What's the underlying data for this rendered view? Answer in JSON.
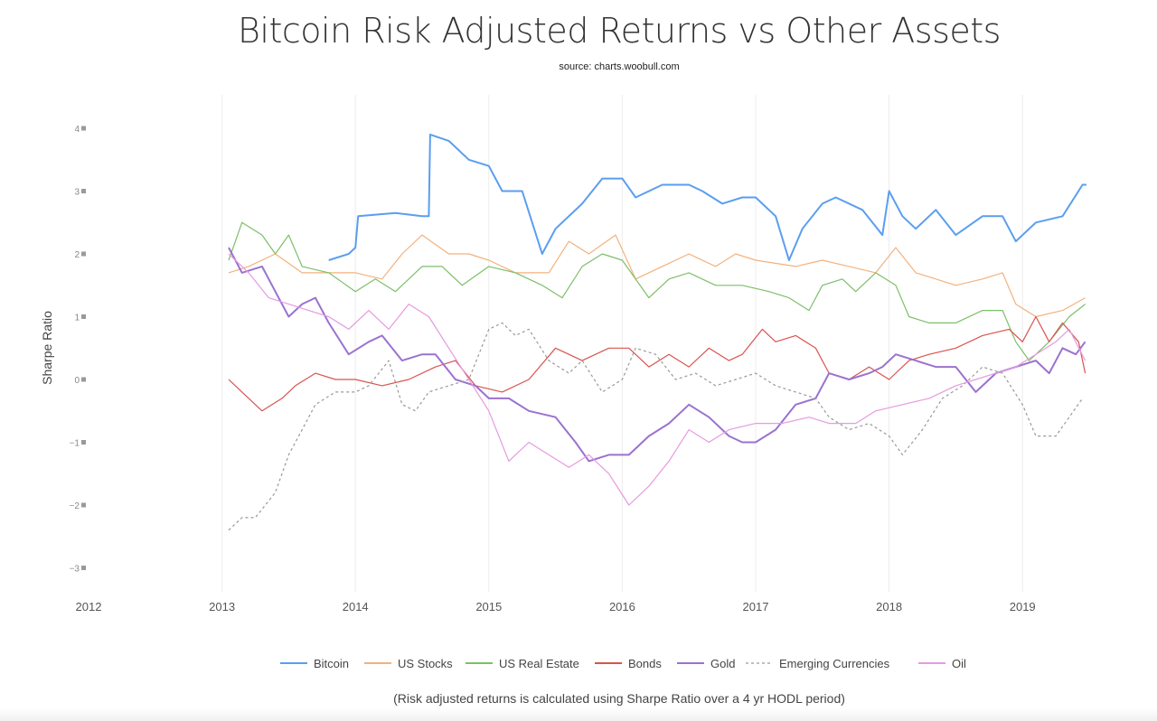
{
  "chart_data": {
    "type": "line",
    "title": "Bitcoin Risk Adjusted Returns vs Other Assets",
    "subtitle": "source: charts.woobull.com",
    "xlabel": "",
    "ylabel": "Sharpe Ratio",
    "footnote": "(Risk adjusted returns is calculated using Sharpe Ratio over a 4 yr HODL period)",
    "xlim": [
      2012,
      2019.5
    ],
    "ylim": [
      -3.4,
      4.4
    ],
    "x_ticks": [
      "2012",
      "2013",
      "2014",
      "2015",
      "2016",
      "2017",
      "2018",
      "2019"
    ],
    "y_ticks": [
      "4",
      "3",
      "2",
      "1",
      "0",
      "−1",
      "−2",
      "−3"
    ],
    "grid": "vertical",
    "legend_position": "bottom",
    "series": [
      {
        "name": "Bitcoin",
        "color": "#5a9ef0",
        "dash": false,
        "x": [
          2013.8,
          2013.95,
          2014.0,
          2014.02,
          2014.3,
          2014.5,
          2014.55,
          2014.56,
          2014.7,
          2014.85,
          2015.0,
          2015.1,
          2015.25,
          2015.4,
          2015.5,
          2015.7,
          2015.85,
          2016.0,
          2016.1,
          2016.3,
          2016.5,
          2016.6,
          2016.75,
          2016.9,
          2017.0,
          2017.15,
          2017.25,
          2017.35,
          2017.5,
          2017.6,
          2017.8,
          2017.95,
          2018.0,
          2018.1,
          2018.2,
          2018.35,
          2018.5,
          2018.7,
          2018.85,
          2018.95,
          2019.1,
          2019.3,
          2019.45,
          2019.48
        ],
        "y": [
          1.9,
          2.0,
          2.1,
          2.6,
          2.65,
          2.6,
          2.6,
          3.9,
          3.8,
          3.5,
          3.4,
          3.0,
          3.0,
          2.0,
          2.4,
          2.8,
          3.2,
          3.2,
          2.9,
          3.1,
          3.1,
          3.0,
          2.8,
          2.9,
          2.9,
          2.6,
          1.9,
          2.4,
          2.8,
          2.9,
          2.7,
          2.3,
          3.0,
          2.6,
          2.4,
          2.7,
          2.3,
          2.6,
          2.6,
          2.2,
          2.5,
          2.6,
          3.1,
          3.1
        ]
      },
      {
        "name": "US Stocks",
        "color": "#f2b27e",
        "dash": false,
        "x": [
          2013.05,
          2013.2,
          2013.4,
          2013.6,
          2013.8,
          2014.0,
          2014.2,
          2014.35,
          2014.5,
          2014.7,
          2014.85,
          2015.0,
          2015.2,
          2015.45,
          2015.6,
          2015.75,
          2015.95,
          2016.1,
          2016.3,
          2016.5,
          2016.7,
          2016.85,
          2017.0,
          2017.3,
          2017.5,
          2017.7,
          2017.9,
          2018.05,
          2018.2,
          2018.35,
          2018.5,
          2018.7,
          2018.85,
          2018.95,
          2019.1,
          2019.3,
          2019.47
        ],
        "y": [
          1.7,
          1.8,
          2.0,
          1.7,
          1.7,
          1.7,
          1.6,
          2.0,
          2.3,
          2.0,
          2.0,
          1.9,
          1.7,
          1.7,
          2.2,
          2.0,
          2.3,
          1.6,
          1.8,
          2.0,
          1.8,
          2.0,
          1.9,
          1.8,
          1.9,
          1.8,
          1.7,
          2.1,
          1.7,
          1.6,
          1.5,
          1.6,
          1.7,
          1.2,
          1.0,
          1.1,
          1.3
        ]
      },
      {
        "name": "US Real Estate",
        "color": "#7dbf6a",
        "dash": false,
        "x": [
          2013.05,
          2013.15,
          2013.3,
          2013.4,
          2013.5,
          2013.6,
          2013.8,
          2014.0,
          2014.15,
          2014.3,
          2014.5,
          2014.65,
          2014.8,
          2015.0,
          2015.2,
          2015.4,
          2015.55,
          2015.7,
          2015.85,
          2016.0,
          2016.2,
          2016.35,
          2016.5,
          2016.7,
          2016.9,
          2017.1,
          2017.25,
          2017.4,
          2017.5,
          2017.65,
          2017.75,
          2017.9,
          2018.05,
          2018.15,
          2018.3,
          2018.5,
          2018.7,
          2018.85,
          2018.95,
          2019.05,
          2019.2,
          2019.35,
          2019.47
        ],
        "y": [
          1.9,
          2.5,
          2.3,
          2.0,
          2.3,
          1.8,
          1.7,
          1.4,
          1.6,
          1.4,
          1.8,
          1.8,
          1.5,
          1.8,
          1.7,
          1.5,
          1.3,
          1.8,
          2.0,
          1.9,
          1.3,
          1.6,
          1.7,
          1.5,
          1.5,
          1.4,
          1.3,
          1.1,
          1.5,
          1.6,
          1.4,
          1.7,
          1.5,
          1.0,
          0.9,
          0.9,
          1.1,
          1.1,
          0.6,
          0.3,
          0.6,
          1.0,
          1.2
        ]
      },
      {
        "name": "Bonds",
        "color": "#d9534f",
        "dash": false,
        "x": [
          2013.05,
          2013.15,
          2013.3,
          2013.45,
          2013.55,
          2013.7,
          2013.85,
          2014.0,
          2014.2,
          2014.4,
          2014.6,
          2014.75,
          2014.9,
          2015.1,
          2015.3,
          2015.5,
          2015.7,
          2015.9,
          2016.05,
          2016.2,
          2016.35,
          2016.5,
          2016.65,
          2016.8,
          2016.9,
          2017.05,
          2017.15,
          2017.3,
          2017.45,
          2017.55,
          2017.7,
          2017.85,
          2018.0,
          2018.15,
          2018.3,
          2018.5,
          2018.7,
          2018.9,
          2019.0,
          2019.1,
          2019.2,
          2019.3,
          2019.42,
          2019.47
        ],
        "y": [
          0.0,
          -0.2,
          -0.5,
          -0.3,
          -0.1,
          0.1,
          0.0,
          0.0,
          -0.1,
          0.0,
          0.2,
          0.3,
          -0.1,
          -0.2,
          0.0,
          0.5,
          0.3,
          0.5,
          0.5,
          0.2,
          0.4,
          0.2,
          0.5,
          0.3,
          0.4,
          0.8,
          0.6,
          0.7,
          0.5,
          0.1,
          0.0,
          0.2,
          0.0,
          0.3,
          0.4,
          0.5,
          0.7,
          0.8,
          0.6,
          1.0,
          0.6,
          0.9,
          0.6,
          0.1
        ]
      },
      {
        "name": "Gold",
        "color": "#9b72cf",
        "dash": false,
        "x": [
          2013.05,
          2013.15,
          2013.3,
          2013.4,
          2013.5,
          2013.6,
          2013.7,
          2013.8,
          2013.95,
          2014.1,
          2014.2,
          2014.35,
          2014.5,
          2014.6,
          2014.75,
          2014.9,
          2015.0,
          2015.15,
          2015.3,
          2015.5,
          2015.65,
          2015.75,
          2015.9,
          2016.05,
          2016.2,
          2016.35,
          2016.5,
          2016.65,
          2016.8,
          2016.9,
          2017.0,
          2017.15,
          2017.3,
          2017.45,
          2017.55,
          2017.7,
          2017.85,
          2017.95,
          2018.05,
          2018.2,
          2018.35,
          2018.5,
          2018.65,
          2018.8,
          2018.95,
          2019.1,
          2019.2,
          2019.3,
          2019.4,
          2019.47
        ],
        "y": [
          2.1,
          1.7,
          1.8,
          1.4,
          1.0,
          1.2,
          1.3,
          0.9,
          0.4,
          0.6,
          0.7,
          0.3,
          0.4,
          0.4,
          0.0,
          -0.1,
          -0.3,
          -0.3,
          -0.5,
          -0.6,
          -1.0,
          -1.3,
          -1.2,
          -1.2,
          -0.9,
          -0.7,
          -0.4,
          -0.6,
          -0.9,
          -1.0,
          -1.0,
          -0.8,
          -0.4,
          -0.3,
          0.1,
          0.0,
          0.1,
          0.2,
          0.4,
          0.3,
          0.2,
          0.2,
          -0.2,
          0.1,
          0.2,
          0.3,
          0.1,
          0.5,
          0.4,
          0.6
        ]
      },
      {
        "name": "Emerging Currencies",
        "color": "#999999",
        "dash": true,
        "x": [
          2013.05,
          2013.15,
          2013.25,
          2013.4,
          2013.5,
          2013.6,
          2013.7,
          2013.85,
          2014.0,
          2014.1,
          2014.25,
          2014.35,
          2014.45,
          2014.55,
          2014.7,
          2014.85,
          2015.0,
          2015.1,
          2015.2,
          2015.3,
          2015.45,
          2015.6,
          2015.7,
          2015.85,
          2016.0,
          2016.1,
          2016.25,
          2016.4,
          2016.55,
          2016.7,
          2016.85,
          2017.0,
          2017.15,
          2017.3,
          2017.45,
          2017.55,
          2017.7,
          2017.85,
          2018.0,
          2018.1,
          2018.25,
          2018.4,
          2018.55,
          2018.7,
          2018.85,
          2019.0,
          2019.1,
          2019.25,
          2019.35,
          2019.45
        ],
        "y": [
          -2.4,
          -2.2,
          -2.2,
          -1.8,
          -1.2,
          -0.8,
          -0.4,
          -0.2,
          -0.2,
          -0.1,
          0.3,
          -0.4,
          -0.5,
          -0.2,
          -0.1,
          0.0,
          0.8,
          0.9,
          0.7,
          0.8,
          0.3,
          0.1,
          0.3,
          -0.2,
          0.0,
          0.5,
          0.4,
          0.0,
          0.1,
          -0.1,
          0.0,
          0.1,
          -0.1,
          -0.2,
          -0.3,
          -0.6,
          -0.8,
          -0.7,
          -0.9,
          -1.2,
          -0.8,
          -0.3,
          -0.1,
          0.2,
          0.1,
          -0.4,
          -0.9,
          -0.9,
          -0.6,
          -0.3
        ]
      },
      {
        "name": "Oil",
        "color": "#e59ae0",
        "dash": false,
        "x": [
          2013.05,
          2013.2,
          2013.35,
          2013.5,
          2013.65,
          2013.8,
          2013.95,
          2014.1,
          2014.25,
          2014.4,
          2014.55,
          2014.7,
          2014.85,
          2015.0,
          2015.15,
          2015.3,
          2015.45,
          2015.6,
          2015.75,
          2015.9,
          2016.05,
          2016.2,
          2016.35,
          2016.5,
          2016.65,
          2016.8,
          2017.0,
          2017.2,
          2017.4,
          2017.55,
          2017.75,
          2017.9,
          2018.1,
          2018.3,
          2018.5,
          2018.65,
          2018.8,
          2018.95,
          2019.1,
          2019.25,
          2019.35,
          2019.47
        ],
        "y": [
          2.0,
          1.7,
          1.3,
          1.2,
          1.1,
          1.0,
          0.8,
          1.1,
          0.8,
          1.2,
          1.0,
          0.5,
          0.0,
          -0.5,
          -1.3,
          -1.0,
          -1.2,
          -1.4,
          -1.2,
          -1.5,
          -2.0,
          -1.7,
          -1.3,
          -0.8,
          -1.0,
          -0.8,
          -0.7,
          -0.7,
          -0.6,
          -0.7,
          -0.7,
          -0.5,
          -0.4,
          -0.3,
          -0.1,
          0.0,
          0.1,
          0.2,
          0.4,
          0.6,
          0.8,
          0.3
        ]
      }
    ]
  }
}
